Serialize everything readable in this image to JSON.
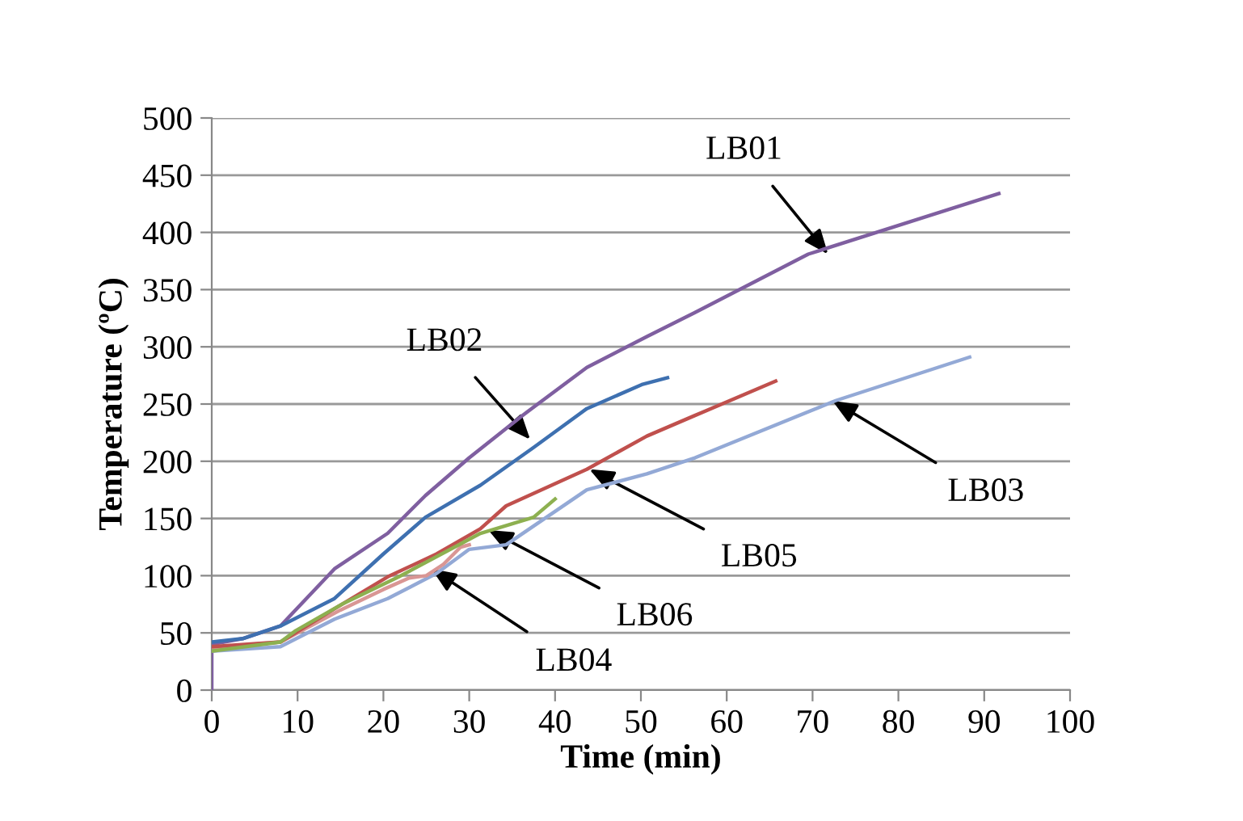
{
  "chart_data": {
    "type": "line",
    "xlabel": "Time (min)",
    "ylabel": "Temperature (ºC)",
    "xlim": [
      0,
      100
    ],
    "xticks": [
      0,
      10,
      20,
      30,
      40,
      50,
      60,
      70,
      80,
      90,
      100
    ],
    "ylim": [
      0,
      500
    ],
    "yticks": [
      0,
      50,
      100,
      150,
      200,
      250,
      300,
      350,
      400,
      450,
      500
    ],
    "grid": "y",
    "legend": false,
    "marker": "none",
    "line_style": "solid",
    "series": [
      {
        "color": "#7f5fa0",
        "x": [
          0,
          0,
          3.6,
          8,
          14.3,
          20.5,
          24.9,
          30,
          36.2,
          43.7,
          50.7,
          56.3,
          69.5,
          91.7
        ],
        "values": [
          0,
          40,
          45,
          56,
          106,
          137,
          170,
          203,
          240,
          282,
          309,
          330,
          381,
          434
        ]
      },
      {
        "color": "#3e70b0",
        "x": [
          0,
          3.6,
          8,
          14.3,
          20,
          24.9,
          31.3,
          37.5,
          43.7,
          50.1,
          53.1
        ],
        "values": [
          42,
          45,
          56,
          80,
          119,
          151,
          179,
          212,
          246,
          267,
          273
        ]
      },
      {
        "color": "#93a9d6",
        "x": [
          0,
          8,
          14.3,
          20.5,
          26.2,
          30,
          34.3,
          43.7,
          50.7,
          56.3,
          72.7,
          88.3
        ],
        "values": [
          34,
          38,
          62,
          80,
          102,
          123,
          127,
          175,
          189,
          203,
          253,
          291
        ]
      },
      {
        "color": "#d99694",
        "x": [
          0,
          8,
          15,
          20,
          23,
          25,
          27,
          29,
          30
        ],
        "values": [
          37,
          42,
          70,
          88,
          98,
          100,
          110,
          125,
          127
        ]
      },
      {
        "color": "#c0504d",
        "x": [
          0,
          8,
          14.3,
          20.5,
          26.2,
          31.3,
          34.3,
          43.7,
          50.7,
          56.3,
          65.7
        ],
        "values": [
          38,
          42,
          71,
          99,
          119,
          141,
          161,
          193,
          222,
          240,
          270
        ]
      },
      {
        "color": "#8db050",
        "x": [
          0,
          8,
          9.8,
          15.4,
          21.8,
          31.3,
          37.5,
          40
        ],
        "values": [
          34,
          42,
          52,
          76,
          99,
          137,
          151,
          167
        ]
      }
    ],
    "annotations": [
      {
        "text": "LB01",
        "x": 71.8,
        "y": 381
      },
      {
        "text": "LB02",
        "x": 37.1,
        "y": 219
      },
      {
        "text": "LB03",
        "x": 72.3,
        "y": 253
      },
      {
        "text": "LB05",
        "x": 44,
        "y": 193
      },
      {
        "text": "LB06",
        "x": 32.2,
        "y": 140
      },
      {
        "text": "LB04",
        "x": 25.6,
        "y": 106
      }
    ]
  }
}
